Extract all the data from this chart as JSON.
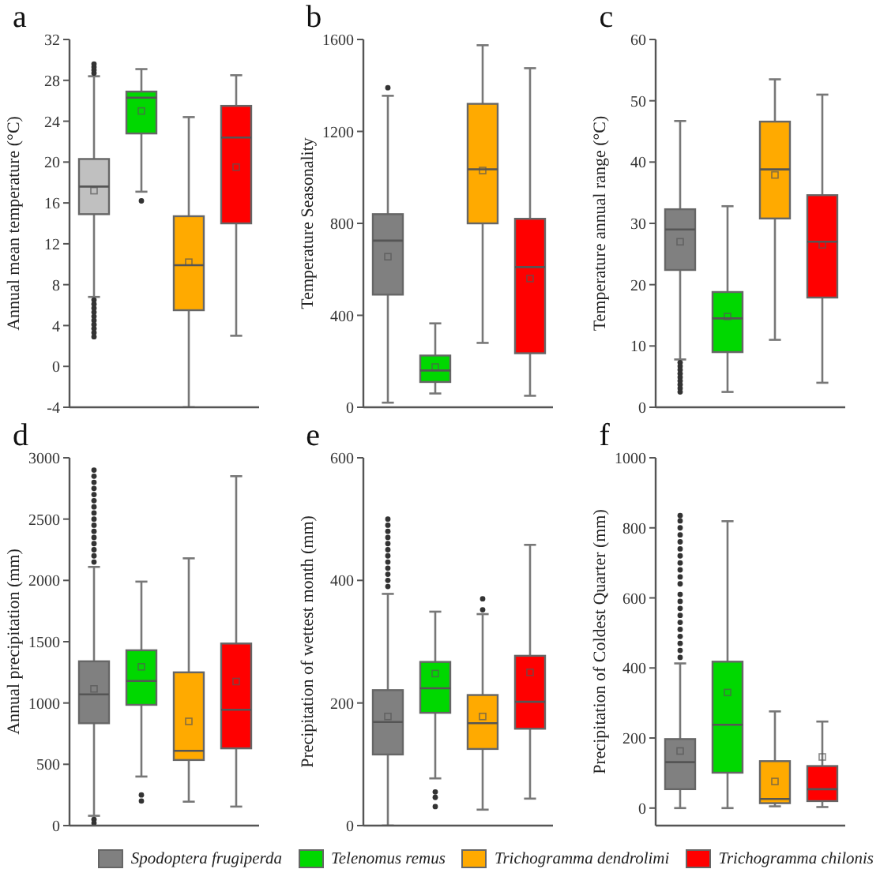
{
  "chart_data": [
    {
      "type": "box",
      "title": "a",
      "ylabel": "Annual mean temperature (°C)",
      "categories": [
        null,
        null,
        null,
        null
      ],
      "tick_labels": "y",
      "ylim": [
        -4,
        32
      ],
      "yticks": [
        -4,
        0,
        4,
        8,
        12,
        16,
        20,
        24,
        28,
        32
      ],
      "series": [
        {
          "color": "#c0c0c0",
          "boxes": [
            {
              "low": 6.8,
              "q1": 14.9,
              "median": 17.6,
              "q3": 20.3,
              "high": 28.4,
              "mean": 17.2,
              "outliers": [
                28.7,
                29.0,
                29.3,
                29.6,
                6.5,
                6.1,
                5.7,
                5.3,
                4.9,
                4.5,
                4.1,
                3.7,
                3.3,
                2.9
              ]
            },
            null,
            null,
            null
          ]
        },
        {
          "color": "#00d800",
          "boxes": [
            null,
            {
              "low": 17.1,
              "q1": 22.8,
              "median": 26.3,
              "q3": 26.9,
              "high": 29.1,
              "mean": 25.0,
              "outliers": [
                16.2
              ]
            },
            null,
            null
          ]
        },
        {
          "color": "#ffaa00",
          "boxes": [
            null,
            null,
            {
              "low": -4.0,
              "q1": 5.5,
              "median": 9.9,
              "q3": 14.7,
              "high": 24.4,
              "mean": 10.2
            },
            null
          ]
        },
        {
          "color": "#ff0000",
          "boxes": [
            null,
            null,
            null,
            {
              "low": 3.0,
              "q1": 14.0,
              "median": 22.4,
              "q3": 25.5,
              "high": 28.5,
              "mean": 19.5
            }
          ]
        }
      ]
    },
    {
      "type": "box",
      "title": "b",
      "ylabel": "Temperature Seasonality",
      "categories": [
        null,
        null,
        null,
        null
      ],
      "tick_labels": "y",
      "ylim": [
        0,
        1600
      ],
      "yticks": [
        0,
        400,
        800,
        1200,
        1600
      ],
      "series": [
        {
          "color": "#808080",
          "boxes": [
            {
              "low": 20,
              "q1": 490,
              "median": 725,
              "q3": 840,
              "high": 1355,
              "mean": 655,
              "outliers": [
                1390
              ]
            },
            null,
            null,
            null
          ]
        },
        {
          "color": "#00d800",
          "boxes": [
            null,
            {
              "low": 60,
              "q1": 110,
              "median": 160,
              "q3": 225,
              "high": 365,
              "mean": 175
            },
            null,
            null
          ]
        },
        {
          "color": "#ffaa00",
          "boxes": [
            null,
            null,
            {
              "low": 280,
              "q1": 800,
              "median": 1035,
              "q3": 1320,
              "high": 1575,
              "mean": 1030
            },
            null
          ]
        },
        {
          "color": "#ff0000",
          "boxes": [
            null,
            null,
            null,
            {
              "low": 50,
              "q1": 235,
              "median": 610,
              "q3": 820,
              "high": 1475,
              "mean": 560
            }
          ]
        }
      ]
    },
    {
      "type": "box",
      "title": "c",
      "ylabel": "Temperature annual range (°C)",
      "categories": [
        null,
        null,
        null,
        null
      ],
      "tick_labels": "y",
      "ylim": [
        0,
        60
      ],
      "yticks": [
        0,
        10,
        20,
        30,
        40,
        50,
        60
      ],
      "series": [
        {
          "color": "#808080",
          "boxes": [
            {
              "low": 7.8,
              "q1": 22.4,
              "median": 29.0,
              "q3": 32.3,
              "high": 46.7,
              "mean": 27.0,
              "outliers": [
                7.3,
                6.7,
                6.1,
                5.5,
                4.9,
                4.3,
                3.7,
                3.1,
                2.5
              ]
            },
            null,
            null,
            null
          ]
        },
        {
          "color": "#00d800",
          "boxes": [
            null,
            {
              "low": 2.5,
              "q1": 9.0,
              "median": 14.5,
              "q3": 18.8,
              "high": 32.8,
              "mean": 14.8
            },
            null,
            null
          ]
        },
        {
          "color": "#ffaa00",
          "boxes": [
            null,
            null,
            {
              "low": 11,
              "q1": 30.8,
              "median": 38.8,
              "q3": 46.6,
              "high": 53.5,
              "mean": 37.9
            },
            null
          ]
        },
        {
          "color": "#ff0000",
          "boxes": [
            null,
            null,
            null,
            {
              "low": 4,
              "q1": 17.9,
              "median": 27.0,
              "q3": 34.6,
              "high": 51.0,
              "mean": 26.5
            }
          ]
        }
      ]
    },
    {
      "type": "box",
      "title": "d",
      "ylabel": "Annual precipitation (mm)",
      "categories": [
        null,
        null,
        null,
        null
      ],
      "tick_labels": "y",
      "ylim": [
        0,
        3000
      ],
      "yticks": [
        0,
        500,
        1000,
        1500,
        2000,
        2500,
        3000
      ],
      "series": [
        {
          "color": "#808080",
          "boxes": [
            {
              "low": 80,
              "q1": 835,
              "median": 1070,
              "q3": 1340,
              "high": 2110,
              "mean": 1115,
              "outliers": [
                2150,
                2200,
                2250,
                2300,
                2350,
                2400,
                2450,
                2500,
                2550,
                2600,
                2650,
                2700,
                2750,
                2800,
                2850,
                2900,
                50,
                20
              ]
            },
            null,
            null,
            null
          ]
        },
        {
          "color": "#00d800",
          "boxes": [
            null,
            {
              "low": 400,
              "q1": 985,
              "median": 1180,
              "q3": 1430,
              "high": 1990,
              "mean": 1295,
              "outliers": [
                250,
                200
              ]
            },
            null,
            null
          ]
        },
        {
          "color": "#ffaa00",
          "boxes": [
            null,
            null,
            {
              "low": 195,
              "q1": 535,
              "median": 610,
              "q3": 1250,
              "high": 2180,
              "mean": 850
            },
            null
          ]
        },
        {
          "color": "#ff0000",
          "boxes": [
            null,
            null,
            null,
            {
              "low": 155,
              "q1": 630,
              "median": 945,
              "q3": 1485,
              "high": 2850,
              "mean": 1175
            }
          ]
        }
      ]
    },
    {
      "type": "box",
      "title": "e",
      "ylabel": "Precipitation of wettest month (mm)",
      "categories": [
        null,
        null,
        null,
        null
      ],
      "tick_labels": "y",
      "ylim": [
        0,
        600
      ],
      "yticks": [
        0,
        200,
        400,
        600
      ],
      "series": [
        {
          "color": "#808080",
          "boxes": [
            {
              "low": 0,
              "q1": 116,
              "median": 169,
              "q3": 221,
              "high": 378,
              "mean": 178,
              "outliers": [
                390,
                400,
                410,
                420,
                430,
                440,
                450,
                460,
                470,
                480,
                490,
                500
              ]
            },
            null,
            null,
            null
          ]
        },
        {
          "color": "#00d800",
          "boxes": [
            null,
            {
              "low": 77,
              "q1": 184,
              "median": 224,
              "q3": 267,
              "high": 349,
              "mean": 248,
              "outliers": [
                55,
                46,
                31
              ]
            },
            null,
            null
          ]
        },
        {
          "color": "#ffaa00",
          "boxes": [
            null,
            null,
            {
              "low": 26,
              "q1": 125,
              "median": 167,
              "q3": 213,
              "high": 345,
              "mean": 178,
              "outliers": [
                352,
                370
              ]
            },
            null
          ]
        },
        {
          "color": "#ff0000",
          "boxes": [
            null,
            null,
            null,
            {
              "low": 44,
              "q1": 158,
              "median": 202,
              "q3": 277,
              "high": 458,
              "mean": 250
            }
          ]
        }
      ]
    },
    {
      "type": "box",
      "title": "f",
      "ylabel": "Precipitation of Coldest Quarter (mm)",
      "categories": [
        null,
        null,
        null,
        null
      ],
      "tick_labels": "y",
      "legend": "bottom",
      "ylim": [
        -50,
        1000
      ],
      "yticks": [
        0,
        200,
        400,
        600,
        800,
        1000
      ],
      "series": [
        {
          "name": "Spodoptera frugiperda",
          "color": "#808080",
          "boxes": [
            {
              "low": 0,
              "q1": 54,
              "median": 131,
              "q3": 197,
              "high": 413,
              "mean": 163,
              "outliers": [
                430,
                450,
                470,
                490,
                510,
                530,
                550,
                570,
                590,
                610,
                640,
                660,
                680,
                700,
                720,
                740,
                760,
                780,
                800,
                820,
                835
              ]
            },
            null,
            null,
            null
          ]
        },
        {
          "name": "Telenomus remus",
          "color": "#00d800",
          "boxes": [
            null,
            {
              "low": 0,
              "q1": 101,
              "median": 238,
              "q3": 418,
              "high": 819,
              "mean": 330
            },
            null,
            null
          ]
        },
        {
          "name": "Trichogramma dendrolimi",
          "color": "#ffaa00",
          "boxes": [
            null,
            null,
            {
              "low": 5,
              "q1": 14,
              "median": 26,
              "q3": 134,
              "high": 276,
              "mean": 76
            },
            null
          ]
        },
        {
          "name": "Trichogramma chilonis",
          "color": "#ff0000",
          "boxes": [
            null,
            null,
            null,
            {
              "low": 3,
              "q1": 20,
              "median": 54,
              "q3": 120,
              "high": 247,
              "mean": 146
            }
          ]
        }
      ]
    }
  ]
}
